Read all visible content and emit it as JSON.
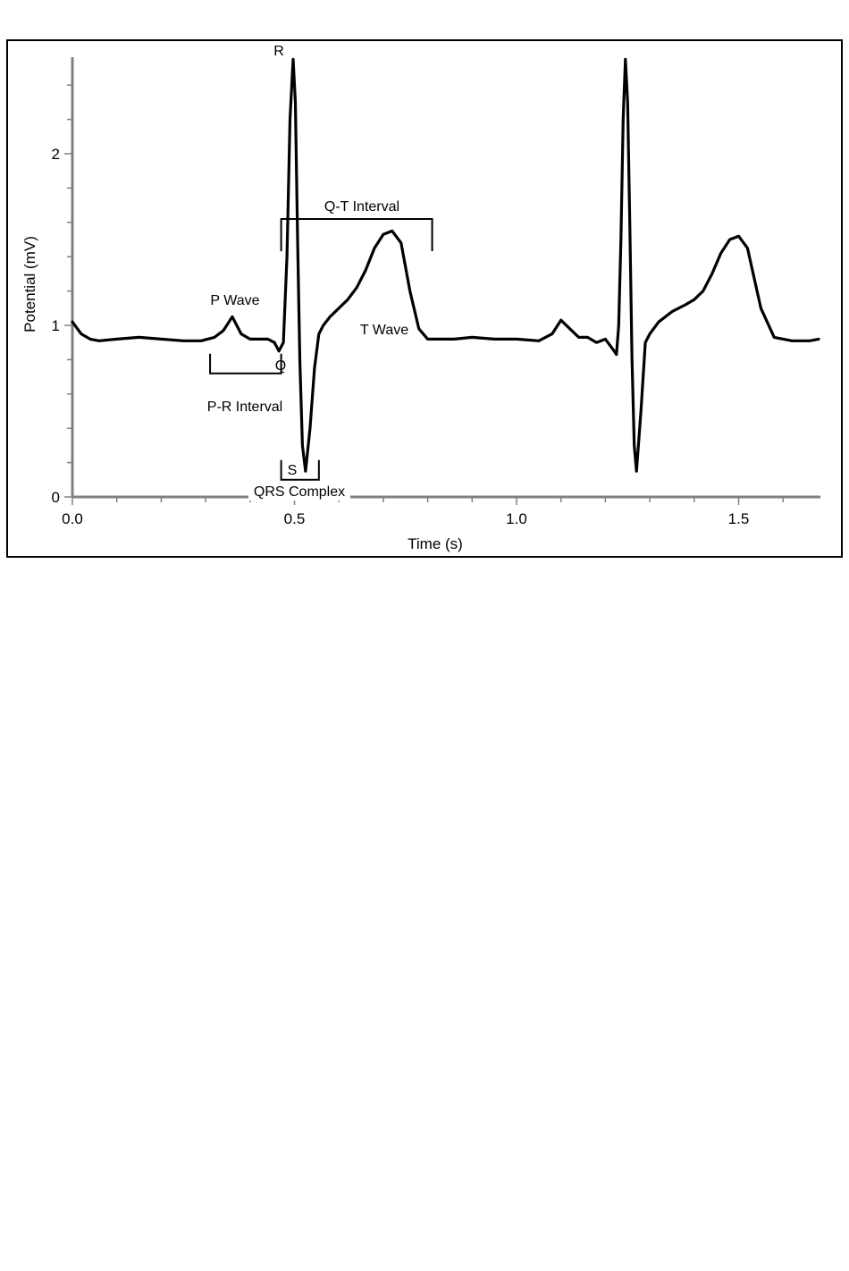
{
  "chart_data": {
    "type": "line",
    "title": "",
    "xlabel": "Time (s)",
    "ylabel": "Potential (mV)",
    "xlim": [
      0,
      1.68
    ],
    "ylim": [
      0,
      2.55
    ],
    "grid": false,
    "legend": "none",
    "xticks": [
      {
        "value": 0.0,
        "label": "0.0"
      },
      {
        "value": 0.5,
        "label": "0.5"
      },
      {
        "value": 1.0,
        "label": "1.0"
      },
      {
        "value": 1.5,
        "label": "1.5"
      }
    ],
    "yticks": [
      {
        "value": 0,
        "label": "0"
      },
      {
        "value": 1,
        "label": "1"
      },
      {
        "value": 2,
        "label": "2"
      }
    ],
    "colors": {
      "line": "#000000",
      "axis": "#808080",
      "frame": "#000000"
    },
    "series": [
      {
        "x": [
          0.0,
          0.02,
          0.04,
          0.06,
          0.1,
          0.15,
          0.2,
          0.25,
          0.29,
          0.32,
          0.34,
          0.36,
          0.38,
          0.4,
          0.42,
          0.44,
          0.455,
          0.465,
          0.475,
          0.483,
          0.49,
          0.497,
          0.502,
          0.507,
          0.512,
          0.518,
          0.525,
          0.535,
          0.545,
          0.555,
          0.565,
          0.58,
          0.6,
          0.62,
          0.64,
          0.66,
          0.68,
          0.7,
          0.72,
          0.74,
          0.76,
          0.78,
          0.8,
          0.82,
          0.86,
          0.9,
          0.95,
          1.0,
          1.05,
          1.08,
          1.1,
          1.12,
          1.14,
          1.16,
          1.18,
          1.2,
          1.22,
          1.225,
          1.23,
          1.235,
          1.24,
          1.245,
          1.25,
          1.255,
          1.26,
          1.265,
          1.27,
          1.28,
          1.29,
          1.3,
          1.32,
          1.35,
          1.38,
          1.4,
          1.42,
          1.44,
          1.46,
          1.48,
          1.5,
          1.52,
          1.55,
          1.58,
          1.62,
          1.66,
          1.68
        ],
        "y": [
          1.02,
          0.95,
          0.92,
          0.91,
          0.92,
          0.93,
          0.92,
          0.91,
          0.91,
          0.93,
          0.97,
          1.05,
          0.95,
          0.92,
          0.92,
          0.92,
          0.9,
          0.85,
          0.9,
          1.4,
          2.2,
          2.55,
          2.3,
          1.5,
          0.8,
          0.3,
          0.15,
          0.4,
          0.75,
          0.95,
          1.0,
          1.05,
          1.1,
          1.15,
          1.22,
          1.32,
          1.45,
          1.53,
          1.55,
          1.48,
          1.2,
          0.98,
          0.92,
          0.92,
          0.92,
          0.93,
          0.92,
          0.92,
          0.91,
          0.95,
          1.03,
          0.98,
          0.93,
          0.93,
          0.9,
          0.92,
          0.85,
          0.83,
          1.0,
          1.5,
          2.2,
          2.55,
          2.3,
          1.6,
          0.8,
          0.3,
          0.15,
          0.5,
          0.9,
          0.95,
          1.02,
          1.08,
          1.12,
          1.15,
          1.2,
          1.3,
          1.42,
          1.5,
          1.52,
          1.45,
          1.1,
          0.93,
          0.91,
          0.91,
          0.92
        ]
      }
    ],
    "annotations": {
      "r": "R",
      "p_wave": "P Wave",
      "q": "Q",
      "pr_interval": "P-R Interval",
      "qt_interval": "Q-T Interval",
      "t_wave": "T Wave",
      "s": "S",
      "qrs_complex": "QRS Complex"
    },
    "brackets": {
      "pr_interval": {
        "from": 0.31,
        "to": 0.47,
        "y": 0.72
      },
      "qt_interval": {
        "from": 0.47,
        "to": 0.81,
        "y": 1.62
      },
      "qrs_complex": {
        "from": 0.47,
        "to": 0.555,
        "y": 0.1
      }
    }
  }
}
